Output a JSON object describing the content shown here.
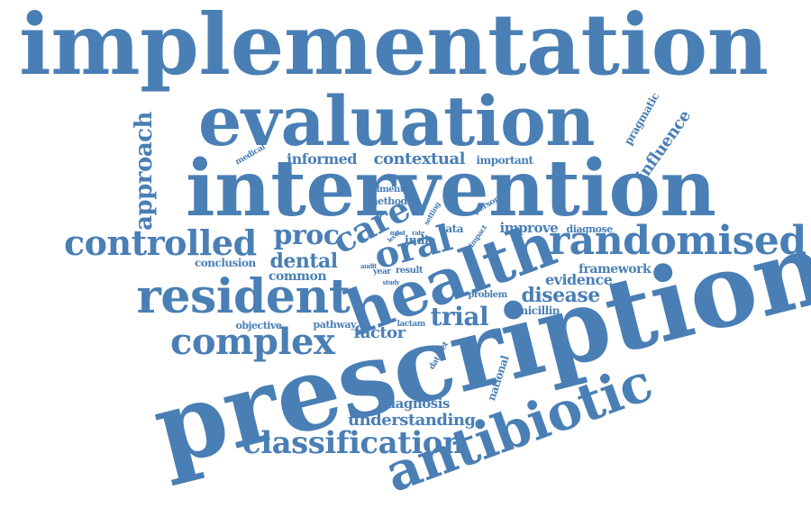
{
  "color": "#4a7fb5",
  "words": [
    {
      "text": "implementation"
    },
    {
      "text": "evaluation"
    },
    {
      "text": "intervention"
    },
    {
      "text": "prescription"
    },
    {
      "text": "antibiotic"
    },
    {
      "text": "health"
    },
    {
      "text": "resident"
    },
    {
      "text": "randomised"
    },
    {
      "text": "controlled"
    },
    {
      "text": "complex"
    },
    {
      "text": "classification"
    },
    {
      "text": "oral"
    },
    {
      "text": "care"
    },
    {
      "text": "proc"
    },
    {
      "text": "trial"
    },
    {
      "text": "approach"
    },
    {
      "text": "influence"
    },
    {
      "text": "pragmatic"
    },
    {
      "text": "dental"
    },
    {
      "text": "disease"
    },
    {
      "text": "evidence"
    },
    {
      "text": "framework"
    },
    {
      "text": "understanding"
    },
    {
      "text": "diagnosis"
    },
    {
      "text": "factor"
    },
    {
      "text": "contextual"
    },
    {
      "text": "informed"
    },
    {
      "text": "important"
    },
    {
      "text": "improve"
    },
    {
      "text": "conclusion"
    },
    {
      "text": "common"
    },
    {
      "text": "pathway"
    },
    {
      "text": "objective"
    },
    {
      "text": "penicillin"
    },
    {
      "text": "problem"
    },
    {
      "text": "national"
    },
    {
      "text": "india"
    },
    {
      "text": "data"
    },
    {
      "text": "diagnose"
    },
    {
      "text": "method"
    },
    {
      "text": "ailment"
    },
    {
      "text": "medical"
    },
    {
      "text": "person"
    },
    {
      "text": "setting"
    },
    {
      "text": "impact"
    },
    {
      "text": "result"
    },
    {
      "text": "year"
    },
    {
      "text": "level"
    },
    {
      "text": "most"
    },
    {
      "text": "rate"
    },
    {
      "text": "audit"
    },
    {
      "text": "study"
    },
    {
      "text": "lactam"
    },
    {
      "text": "dataset"
    }
  ]
}
